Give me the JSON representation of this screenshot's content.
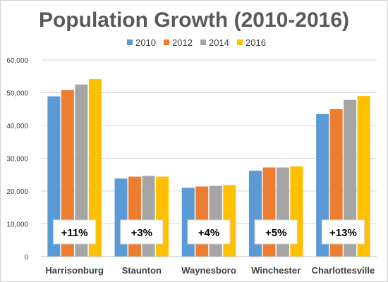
{
  "chart_data": {
    "type": "bar",
    "title": "Population Growth (2010-2016)",
    "categories": [
      "Harrisonburg",
      "Staunton",
      "Waynesboro",
      "Winchester",
      "Charlottesville"
    ],
    "series": [
      {
        "name": "2010",
        "color": "#5b9bd5",
        "values": [
          48900,
          23800,
          21000,
          26200,
          43500
        ]
      },
      {
        "name": "2012",
        "color": "#ed7d31",
        "values": [
          50800,
          24400,
          21400,
          27200,
          45000
        ]
      },
      {
        "name": "2014",
        "color": "#a5a5a5",
        "values": [
          52500,
          24600,
          21600,
          27200,
          47800
        ]
      },
      {
        "name": "2016",
        "color": "#ffc000",
        "values": [
          54200,
          24400,
          21800,
          27500,
          49000
        ]
      }
    ],
    "annotations": [
      "+11%",
      "+3%",
      "+4%",
      "+5%",
      "+13%"
    ],
    "ylim": [
      0,
      60000
    ],
    "yticks": [
      "0",
      "10,000",
      "20,000",
      "30,000",
      "40,000",
      "50,000",
      "60,000"
    ],
    "ytick_values": [
      0,
      10000,
      20000,
      30000,
      40000,
      50000,
      60000
    ],
    "legend_position": "top",
    "grid": true,
    "gridline_color": "#d9d9d9"
  }
}
